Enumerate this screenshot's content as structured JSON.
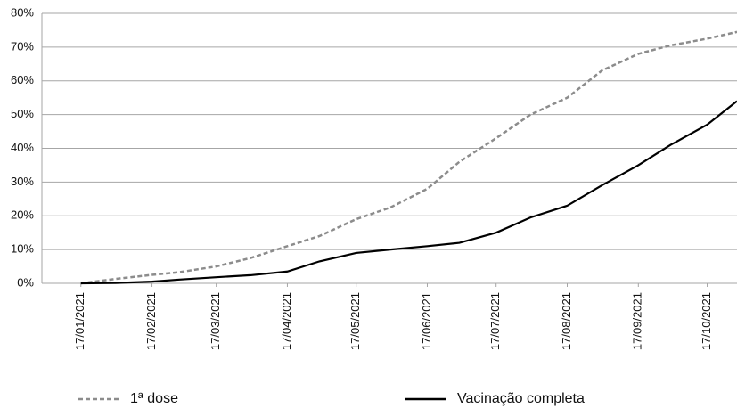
{
  "chart_data": {
    "type": "line",
    "x": [
      "2021-01-17",
      "2021-02-01",
      "2021-02-17",
      "2021-03-01",
      "2021-03-17",
      "2021-04-01",
      "2021-04-17",
      "2021-05-01",
      "2021-05-17",
      "2021-06-01",
      "2021-06-17",
      "2021-07-01",
      "2021-07-17",
      "2021-08-01",
      "2021-08-17",
      "2021-09-01",
      "2021-09-17",
      "2021-10-01",
      "2021-10-17",
      "2021-10-30"
    ],
    "series": [
      {
        "name": "1ª dose",
        "color": "#8c8c8c",
        "style": "dashed",
        "values": [
          0,
          1.3,
          2.5,
          3.3,
          5,
          7.5,
          11,
          14,
          19,
          22.5,
          28,
          36,
          43,
          50,
          55,
          63,
          68,
          70.5,
          72.5,
          74.5
        ]
      },
      {
        "name": "Vacinação completa",
        "color": "#000000",
        "style": "solid",
        "values": [
          0,
          0.1,
          0.5,
          1.1,
          1.8,
          2.4,
          3.5,
          6.5,
          9,
          10,
          11,
          12,
          15,
          19.5,
          23,
          29,
          35,
          41,
          47,
          54
        ]
      }
    ],
    "xlim": [
      "2020-12-31",
      "2021-10-30"
    ],
    "xticks": [
      {
        "value": "2021-01-17",
        "label": "17/01/2021"
      },
      {
        "value": "2021-02-17",
        "label": "17/02/2021"
      },
      {
        "value": "2021-03-17",
        "label": "17/03/2021"
      },
      {
        "value": "2021-04-17",
        "label": "17/04/2021"
      },
      {
        "value": "2021-05-17",
        "label": "17/05/2021"
      },
      {
        "value": "2021-06-17",
        "label": "17/06/2021"
      },
      {
        "value": "2021-07-17",
        "label": "17/07/2021"
      },
      {
        "value": "2021-08-17",
        "label": "17/08/2021"
      },
      {
        "value": "2021-09-17",
        "label": "17/09/2021"
      },
      {
        "value": "2021-10-17",
        "label": "17/10/2021"
      }
    ],
    "ylim": [
      0,
      80
    ],
    "yticks": [
      {
        "value": 0,
        "label": "0%"
      },
      {
        "value": 10,
        "label": "10%"
      },
      {
        "value": 20,
        "label": "20%"
      },
      {
        "value": 30,
        "label": "30%"
      },
      {
        "value": 40,
        "label": "40%"
      },
      {
        "value": 50,
        "label": "50%"
      },
      {
        "value": 60,
        "label": "60%"
      },
      {
        "value": 70,
        "label": "70%"
      },
      {
        "value": 80,
        "label": "80%"
      }
    ],
    "grid": true,
    "legend": "bottom"
  }
}
